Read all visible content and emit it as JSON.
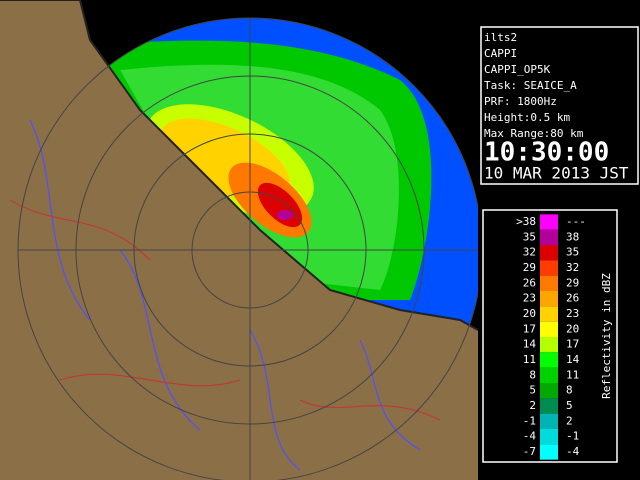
{
  "info": {
    "lines": [
      "ilts2",
      "CAPPI",
      "CAPPI_OP5K",
      "Task: SEAICE_A",
      "PRF: 1800Hz",
      "Height:0.5 km",
      "Max Range:80 km"
    ],
    "time": "10:30:00",
    "date": "10 MAR 2013 JST"
  },
  "legend": {
    "title": "Reflectivity in dBZ",
    "rows": [
      {
        "low": ">38",
        "high": "---",
        "color": "#ff00ff"
      },
      {
        "low": "35",
        "high": "38",
        "color": "#b4009a"
      },
      {
        "low": "32",
        "high": "35",
        "color": "#dc0000"
      },
      {
        "low": "29",
        "high": "32",
        "color": "#ff3c00"
      },
      {
        "low": "26",
        "high": "29",
        "color": "#ff7800"
      },
      {
        "low": "23",
        "high": "26",
        "color": "#ffa500"
      },
      {
        "low": "20",
        "high": "23",
        "color": "#ffd200"
      },
      {
        "low": "17",
        "high": "20",
        "color": "#ffff00"
      },
      {
        "low": "14",
        "high": "17",
        "color": "#b4ff00"
      },
      {
        "low": "11",
        "high": "14",
        "color": "#00ff00"
      },
      {
        "low": "8",
        "high": "11",
        "color": "#00d200"
      },
      {
        "low": "5",
        "high": "8",
        "color": "#00aa00"
      },
      {
        "low": "2",
        "high": "5",
        "color": "#008c50"
      },
      {
        "low": "-1",
        "high": "2",
        "color": "#00b4b4"
      },
      {
        "low": "-4",
        "high": "-1",
        "color": "#00dcdc"
      },
      {
        "low": "-7",
        "high": "-4",
        "color": "#00ffff"
      }
    ]
  }
}
